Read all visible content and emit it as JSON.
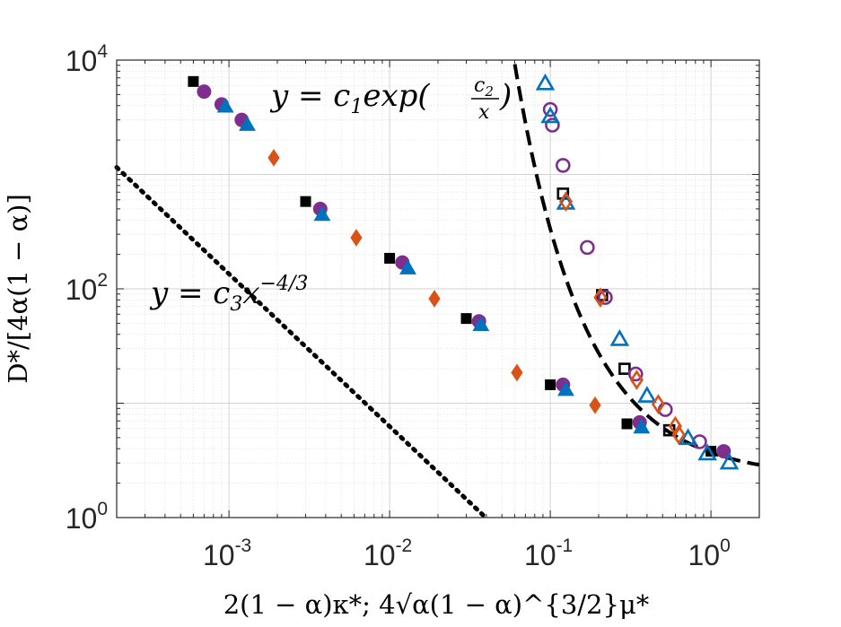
{
  "chart_data": {
    "type": "scatter",
    "xscale": "log",
    "yscale": "log",
    "xlim": [
      0.0002,
      2
    ],
    "ylim": [
      1,
      10000
    ],
    "grid": "major+minor",
    "xlabel": "2(1 − α)κ*; 4√α(1 − α)^{3/2}μ*",
    "ylabel": "D*/[4α(1 − α)]",
    "x_ticks": [
      {
        "value": 0.001,
        "base": "10",
        "exp": "-3"
      },
      {
        "value": 0.01,
        "base": "10",
        "exp": "-2"
      },
      {
        "value": 0.1,
        "base": "10",
        "exp": "-1"
      },
      {
        "value": 1,
        "base": "10",
        "exp": "0"
      }
    ],
    "y_ticks": [
      {
        "value": 1,
        "base": "10",
        "exp": "0"
      },
      {
        "value": 100,
        "base": "10",
        "exp": "2"
      },
      {
        "value": 10000,
        "base": "10",
        "exp": "4"
      }
    ],
    "annotations": {
      "exp_fit": {
        "prefix": "y = c",
        "sub1": "1",
        "mid": "exp(",
        "num": "c",
        "num_sub": "2",
        "den": "x",
        "suffix": ")"
      },
      "power_fit": {
        "prefix": "y = c",
        "sub": "3",
        "mid": "x",
        "sup": "−4/3"
      }
    },
    "fit_lines": [
      {
        "name": "power-law fit",
        "formula": "y = c3 x^(-4/3)",
        "style": "dotted",
        "color": "#000000",
        "c3": 0.0135
      },
      {
        "name": "exponential fit",
        "formula": "y = c1 exp(c2/x)",
        "style": "dashed",
        "color": "#000000",
        "c1": 2.25,
        "c2": 0.5
      }
    ],
    "series": [
      {
        "name": "squares filled",
        "marker": "square",
        "filled": true,
        "color": "#000000",
        "points": [
          [
            0.0006,
            6500
          ],
          [
            0.003,
            580
          ],
          [
            0.01,
            185
          ],
          [
            0.03,
            55
          ],
          [
            0.1,
            14.5
          ],
          [
            0.3,
            6.6
          ],
          [
            1,
            3.8
          ]
        ]
      },
      {
        "name": "circles filled",
        "marker": "circle",
        "filled": true,
        "color": "#7E2F8E",
        "points": [
          [
            0.0007,
            5300
          ],
          [
            0.0009,
            4100
          ],
          [
            0.0012,
            3000
          ],
          [
            0.0037,
            500
          ],
          [
            0.012,
            170
          ],
          [
            0.036,
            52
          ],
          [
            0.12,
            14.5
          ],
          [
            0.36,
            6.8
          ],
          [
            1.2,
            3.8
          ]
        ]
      },
      {
        "name": "triangles filled",
        "marker": "triangle",
        "filled": true,
        "color": "#0072BD",
        "points": [
          [
            0.00095,
            3900
          ],
          [
            0.0013,
            2700
          ],
          [
            0.0038,
            440
          ],
          [
            0.013,
            150
          ],
          [
            0.037,
            48
          ],
          [
            0.125,
            13
          ],
          [
            0.37,
            6.1
          ]
        ]
      },
      {
        "name": "diamonds filled",
        "marker": "diamond",
        "filled": true,
        "color": "#D95319",
        "points": [
          [
            0.0019,
            1400
          ],
          [
            0.0062,
            280
          ],
          [
            0.019,
            82
          ],
          [
            0.062,
            18.5
          ],
          [
            0.19,
            9.6
          ]
        ]
      },
      {
        "name": "squares open",
        "marker": "square",
        "filled": false,
        "color": "#000000",
        "points": [
          [
            0.12,
            680
          ],
          [
            0.21,
            88
          ],
          [
            0.29,
            20
          ],
          [
            0.55,
            5.8
          ]
        ]
      },
      {
        "name": "circles open",
        "marker": "circle",
        "filled": false,
        "color": "#7E2F8E",
        "points": [
          [
            0.1,
            3700
          ],
          [
            0.103,
            2700
          ],
          [
            0.12,
            1200
          ],
          [
            0.17,
            230
          ],
          [
            0.22,
            84
          ],
          [
            0.34,
            18
          ],
          [
            0.52,
            8.8
          ],
          [
            0.85,
            4.6
          ]
        ]
      },
      {
        "name": "triangles open",
        "marker": "triangle",
        "filled": false,
        "color": "#0072BD",
        "points": [
          [
            0.093,
            6200
          ],
          [
            0.1,
            3200
          ],
          [
            0.125,
            560
          ],
          [
            0.27,
            36
          ],
          [
            0.4,
            11.5
          ],
          [
            0.72,
            4.9
          ],
          [
            0.95,
            3.6
          ],
          [
            1.3,
            3.0
          ]
        ]
      },
      {
        "name": "diamonds open",
        "marker": "diamond",
        "filled": false,
        "color": "#D95319",
        "points": [
          [
            0.125,
            580
          ],
          [
            0.205,
            84
          ],
          [
            0.345,
            16
          ],
          [
            0.47,
            9.8
          ],
          [
            0.6,
            6.3
          ],
          [
            0.63,
            5.3
          ]
        ]
      }
    ]
  }
}
